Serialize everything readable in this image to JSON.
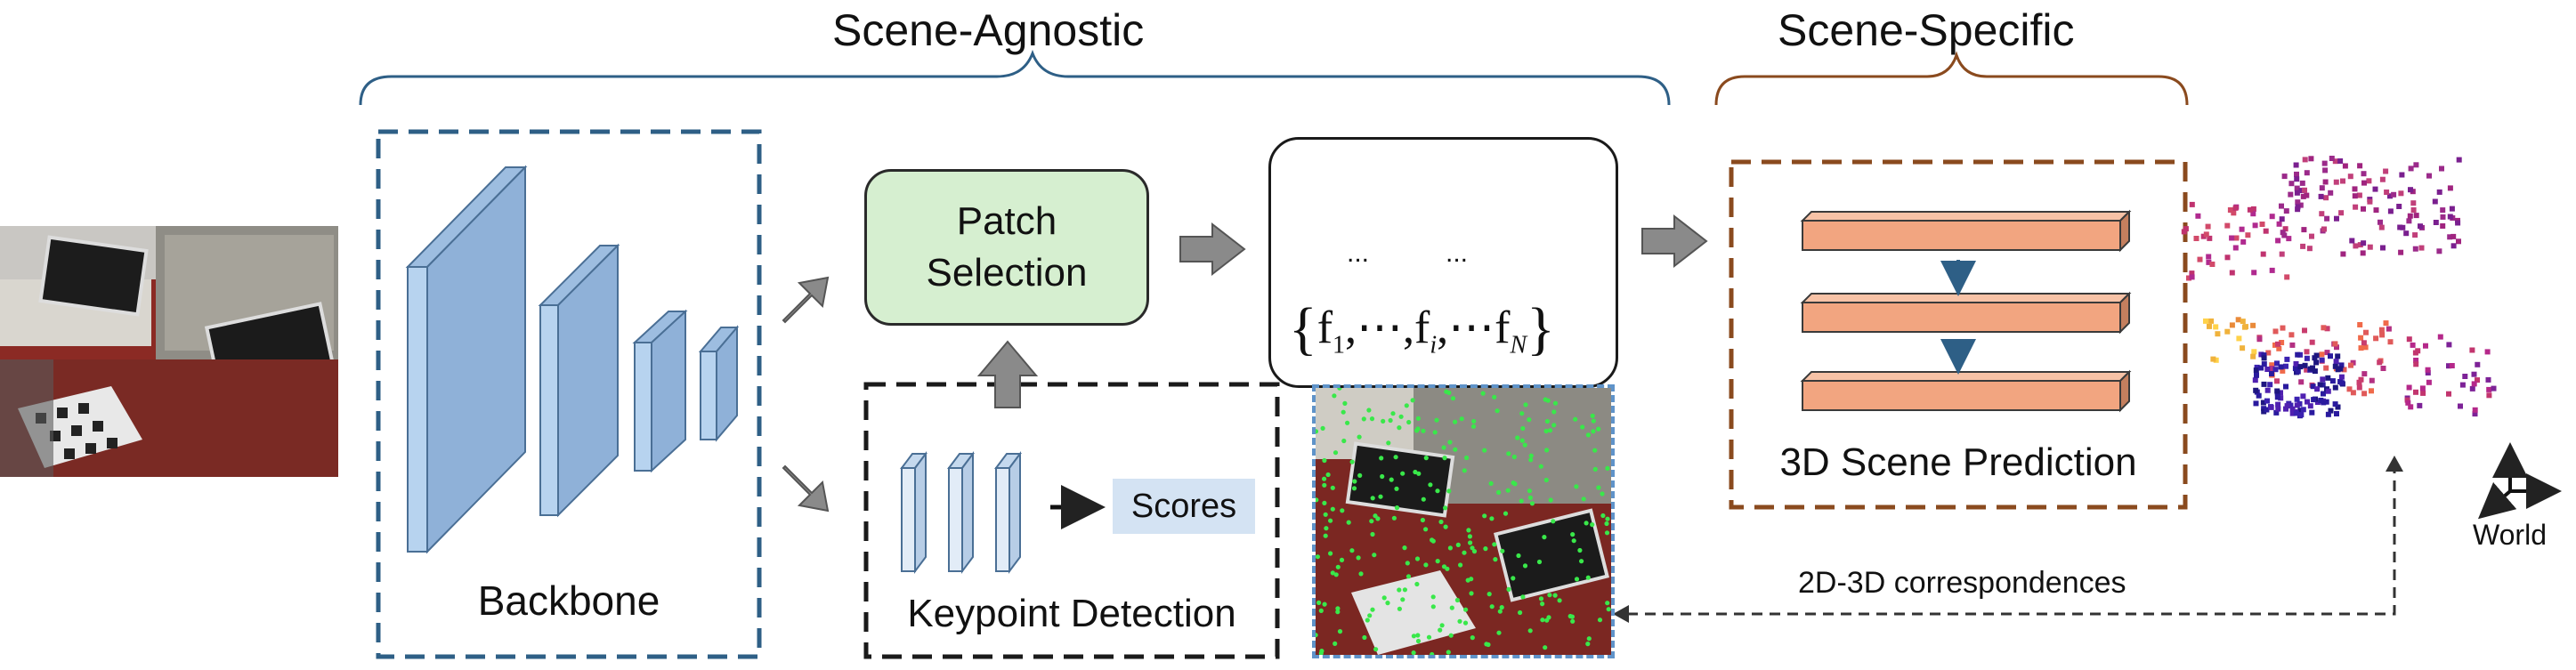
{
  "groups": {
    "scene_agnostic": "Scene-Agnostic",
    "scene_specific": "Scene-Specific"
  },
  "modules": {
    "backbone": "Backbone",
    "patch_selection_line1": "Patch",
    "patch_selection_line2": "Selection",
    "keypoint_detection": "Keypoint Detection",
    "scores": "Scores",
    "scene_prediction": "3D Scene Prediction"
  },
  "features": {
    "ellipsis": "...",
    "formula_f1": "f",
    "formula_sub1": "1",
    "formula_dots": "⋯",
    "formula_fi": "f",
    "formula_subi": "i",
    "formula_fN": "f",
    "formula_subN": "N"
  },
  "labels": {
    "correspondences": "2D-3D correspondences",
    "world": "World"
  },
  "colors": {
    "scene_agnostic_brace": "#2e5f86",
    "scene_specific_brace": "#8a4a1e",
    "backbone_fill": "#b7d3ef",
    "patch_fill": "#d6efd0",
    "scene_layer_fill": "#f2a580",
    "scene_box_border": "#8a4a1e",
    "keypoint_green": "#39e84a"
  }
}
